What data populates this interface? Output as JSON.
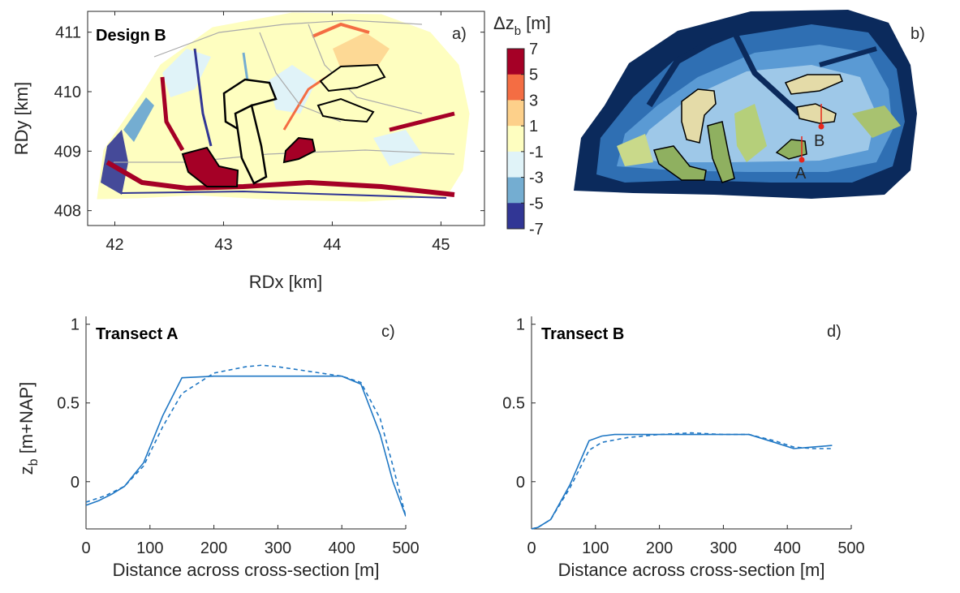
{
  "panel_a": {
    "letter": "a)",
    "title": "Design B",
    "xlabel": "RDx [km]",
    "ylabel": "RDy [km]",
    "xticks": [
      "42",
      "43",
      "44",
      "45"
    ],
    "yticks": [
      "408",
      "409",
      "410",
      "411"
    ]
  },
  "colorbar": {
    "title_main": "Δz",
    "title_sub": "b",
    "title_unit": " [m]",
    "ticks": [
      "7",
      "5",
      "3",
      "1",
      "-1",
      "-3",
      "-5",
      "-7"
    ],
    "colors": [
      "#a50026",
      "#f46d43",
      "#fdd08a",
      "#fefec0",
      "#e0f3f8",
      "#74add1",
      "#313695"
    ]
  },
  "panel_b": {
    "letter": "b)",
    "label_a": "A",
    "label_b": "B"
  },
  "chart_data": [
    {
      "type": "heatmap",
      "panel": "a",
      "title": "Design B",
      "xlabel": "RDx [km]",
      "ylabel": "RDy [km]",
      "xlim": [
        41.75,
        45.4
      ],
      "ylim": [
        407.75,
        411.35
      ],
      "colorbar": {
        "label": "Δz_b [m]",
        "range": [
          -7,
          7
        ],
        "levels": [
          -7,
          -5,
          -3,
          -1,
          1,
          3,
          5,
          7
        ]
      }
    },
    {
      "type": "heatmap",
      "panel": "b",
      "transect_labels": [
        "A",
        "B"
      ]
    },
    {
      "type": "line",
      "panel": "c",
      "title": "Transect A",
      "letter": "c)",
      "xlabel": "Distance across cross-section [m]",
      "ylabel_main": "z",
      "ylabel_sub": "b",
      "ylabel_unit": " [m+NAP]",
      "xlim": [
        0,
        500
      ],
      "ylim": [
        -0.3,
        1.05
      ],
      "xticks": [
        "0",
        "100",
        "200",
        "300",
        "400",
        "500"
      ],
      "yticks": [
        "0",
        "0.5",
        "1"
      ],
      "series": [
        {
          "style": "solid",
          "x": [
            0,
            20,
            40,
            60,
            90,
            120,
            150,
            200,
            250,
            300,
            350,
            400,
            430,
            460,
            480,
            500
          ],
          "y": [
            -0.15,
            -0.12,
            -0.08,
            -0.03,
            0.12,
            0.42,
            0.66,
            0.67,
            0.67,
            0.67,
            0.67,
            0.67,
            0.62,
            0.3,
            0.0,
            -0.22
          ]
        },
        {
          "style": "dashed",
          "x": [
            0,
            30,
            60,
            90,
            120,
            150,
            200,
            250,
            275,
            300,
            350,
            400,
            430,
            460,
            480,
            500
          ],
          "y": [
            -0.13,
            -0.09,
            -0.03,
            0.1,
            0.35,
            0.56,
            0.69,
            0.73,
            0.74,
            0.73,
            0.7,
            0.67,
            0.63,
            0.4,
            0.1,
            -0.22
          ]
        }
      ]
    },
    {
      "type": "line",
      "panel": "d",
      "title": "Transect B",
      "letter": "d)",
      "xlabel": "Distance across cross-section [m]",
      "xlim": [
        0,
        500
      ],
      "ylim": [
        -0.3,
        1.05
      ],
      "xticks": [
        "0",
        "100",
        "200",
        "300",
        "400",
        "500"
      ],
      "yticks": [
        "0",
        "0.5",
        "1"
      ],
      "series": [
        {
          "style": "solid",
          "x": [
            0,
            10,
            30,
            60,
            90,
            110,
            130,
            200,
            250,
            300,
            340,
            380,
            410,
            440,
            470
          ],
          "y": [
            -0.3,
            -0.29,
            -0.24,
            -0.02,
            0.26,
            0.29,
            0.3,
            0.3,
            0.3,
            0.3,
            0.3,
            0.25,
            0.21,
            0.22,
            0.23
          ]
        },
        {
          "style": "dashed",
          "x": [
            0,
            10,
            30,
            60,
            90,
            110,
            150,
            200,
            250,
            300,
            340,
            380,
            410,
            440,
            470
          ],
          "y": [
            -0.3,
            -0.29,
            -0.24,
            -0.04,
            0.2,
            0.25,
            0.28,
            0.3,
            0.31,
            0.3,
            0.3,
            0.26,
            0.22,
            0.21,
            0.21
          ]
        }
      ]
    }
  ]
}
